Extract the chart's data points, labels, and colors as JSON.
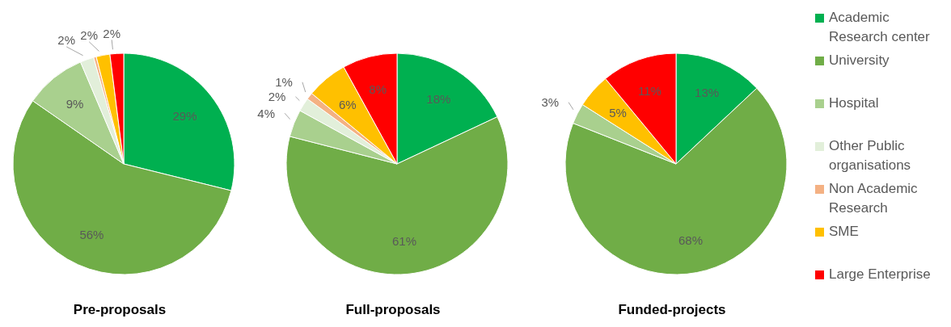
{
  "chart_data": [
    {
      "type": "pie",
      "title": "Pre-proposals",
      "categories": [
        null,
        null,
        null,
        null,
        null,
        null,
        null
      ],
      "values": [
        29,
        56,
        9,
        2,
        0.4,
        2,
        2
      ],
      "value_labels": [
        "29%",
        "56%",
        "9%",
        "2%",
        null,
        "2%",
        "2%"
      ],
      "colors": [
        "#00b050",
        "#70ad47",
        "#a9d08e",
        "#e2efda",
        "#f4b183",
        "#ffc000",
        "#ff0000"
      ],
      "legend": false
    },
    {
      "type": "pie",
      "title": "Full-proposals",
      "categories": [
        null,
        null,
        null,
        null,
        null,
        null,
        null
      ],
      "values": [
        18,
        61,
        4,
        2,
        1,
        6,
        8
      ],
      "value_labels": [
        "18%",
        "61%",
        "4%",
        "2%",
        "1%",
        "6%",
        "8%"
      ],
      "colors": [
        "#00b050",
        "#70ad47",
        "#a9d08e",
        "#e2efda",
        "#f4b183",
        "#ffc000",
        "#ff0000"
      ],
      "legend": false
    },
    {
      "type": "pie",
      "title": "Funded-projects",
      "categories": [
        "Academic Research center",
        "University",
        "Hospital",
        "Other Public organisations",
        "Non Academic Research",
        "SME",
        "Large Enterprise"
      ],
      "values": [
        13,
        68,
        3,
        0,
        0,
        5,
        11
      ],
      "value_labels": [
        "13%",
        "68%",
        "3%",
        null,
        null,
        "5%",
        "11%"
      ],
      "colors": [
        "#00b050",
        "#70ad47",
        "#a9d08e",
        "#e2efda",
        "#f4b183",
        "#ffc000",
        "#ff0000"
      ],
      "legend": "right"
    }
  ]
}
